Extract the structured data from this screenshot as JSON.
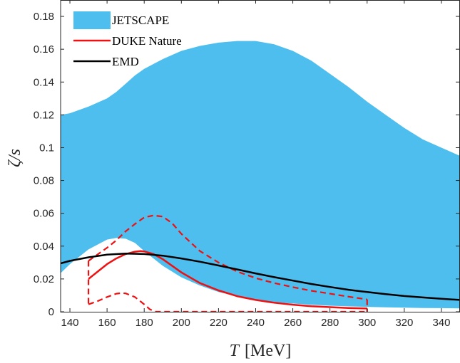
{
  "chart_data": {
    "type": "area",
    "xlabel": {
      "var": "T",
      "unit": "[MeV]"
    },
    "ylabel": "ζ/s",
    "xlim": [
      135,
      350
    ],
    "ylim": [
      0,
      0.19
    ],
    "x_ticks": [
      140,
      160,
      180,
      200,
      220,
      240,
      260,
      280,
      300,
      320,
      340
    ],
    "x_tick_labels": [
      "140",
      "160",
      "180",
      "200",
      "220",
      "240",
      "260",
      "280",
      "300",
      "320",
      "340"
    ],
    "y_ticks": [
      0,
      0.02,
      0.04,
      0.06,
      0.08,
      0.1,
      0.12,
      0.14,
      0.16,
      0.18
    ],
    "y_tick_labels": [
      "0",
      "0.02",
      "0.04",
      "0.06",
      "0.08",
      "0.1",
      "0.12",
      "0.14",
      "0.16",
      "0.18"
    ],
    "grid": false,
    "legend_position": "top-left",
    "series": [
      {
        "name": "JETSCAPE",
        "kind": "band",
        "color": "#4DBEEE",
        "x": [
          135,
          140,
          150,
          160,
          165,
          170,
          175,
          180,
          190,
          200,
          210,
          220,
          230,
          240,
          250,
          260,
          270,
          280,
          290,
          300,
          310,
          320,
          330,
          340,
          350
        ],
        "upper": [
          0.12,
          0.121,
          0.125,
          0.13,
          0.134,
          0.139,
          0.144,
          0.148,
          0.154,
          0.159,
          0.162,
          0.164,
          0.165,
          0.165,
          0.163,
          0.159,
          0.153,
          0.145,
          0.137,
          0.128,
          0.12,
          0.112,
          0.105,
          0.1,
          0.095
        ],
        "lower": [
          0.0235,
          0.029,
          0.038,
          0.044,
          0.045,
          0.0445,
          0.042,
          0.037,
          0.028,
          0.021,
          0.016,
          0.012,
          0.0095,
          0.0075,
          0.006,
          0.005,
          0.0043,
          0.0037,
          0.0033,
          0.003,
          0.0027,
          0.0025,
          0.0023,
          0.0022,
          0.0021
        ]
      },
      {
        "name": "DUKE Nature",
        "kind": "line",
        "color": "#EE1111",
        "x": [
          150,
          155,
          160,
          165,
          170,
          175,
          178,
          180,
          185,
          190,
          200,
          210,
          220,
          230,
          240,
          250,
          260,
          270,
          280,
          290,
          300
        ],
        "y": [
          0.02,
          0.0245,
          0.029,
          0.0325,
          0.0352,
          0.0366,
          0.037,
          0.0368,
          0.0352,
          0.032,
          0.024,
          0.0175,
          0.013,
          0.0095,
          0.0072,
          0.0055,
          0.0043,
          0.0034,
          0.0028,
          0.0023,
          0.002
        ]
      },
      {
        "name": "DUKE Nature upper",
        "kind": "dashed",
        "color": "#EE1111",
        "x": [
          150,
          155,
          160,
          165,
          170,
          175,
          180,
          185,
          190,
          195,
          200,
          210,
          220,
          230,
          240,
          250,
          260,
          270,
          280,
          290,
          300
        ],
        "y": [
          0.031,
          0.035,
          0.039,
          0.0435,
          0.049,
          0.0535,
          0.0575,
          0.0587,
          0.058,
          0.054,
          0.0475,
          0.037,
          0.03,
          0.0245,
          0.0205,
          0.0175,
          0.015,
          0.0128,
          0.011,
          0.0092,
          0.0075
        ]
      },
      {
        "name": "DUKE Nature lower",
        "kind": "dashed",
        "color": "#EE1111",
        "x": [
          150,
          155,
          160,
          165,
          168,
          170,
          175,
          180,
          183,
          186,
          190,
          200,
          220,
          240,
          260,
          280,
          300
        ],
        "y": [
          0.0045,
          0.0065,
          0.009,
          0.011,
          0.0114,
          0.0112,
          0.009,
          0.0045,
          0.0015,
          0.0,
          0.0,
          0.0,
          0.0,
          0.0,
          0.0,
          0.0,
          0.0
        ]
      },
      {
        "name": "EMD",
        "kind": "line",
        "color": "#000000",
        "x": [
          135,
          140,
          150,
          160,
          170,
          180,
          190,
          200,
          210,
          220,
          230,
          240,
          250,
          260,
          270,
          280,
          290,
          300,
          310,
          320,
          330,
          340,
          350
        ],
        "y": [
          0.0295,
          0.031,
          0.0332,
          0.0348,
          0.0355,
          0.0352,
          0.0342,
          0.0325,
          0.0305,
          0.0282,
          0.0258,
          0.0234,
          0.0211,
          0.019,
          0.0169,
          0.0151,
          0.0134,
          0.012,
          0.0107,
          0.0096,
          0.0087,
          0.0079,
          0.0072
        ]
      }
    ],
    "legend": [
      {
        "label": "JETSCAPE",
        "style": "patch",
        "color": "#4DBEEE"
      },
      {
        "label": "DUKE Nature",
        "style": "line",
        "color": "#EE1111"
      },
      {
        "label": "EMD",
        "style": "line",
        "color": "#000000"
      }
    ]
  }
}
